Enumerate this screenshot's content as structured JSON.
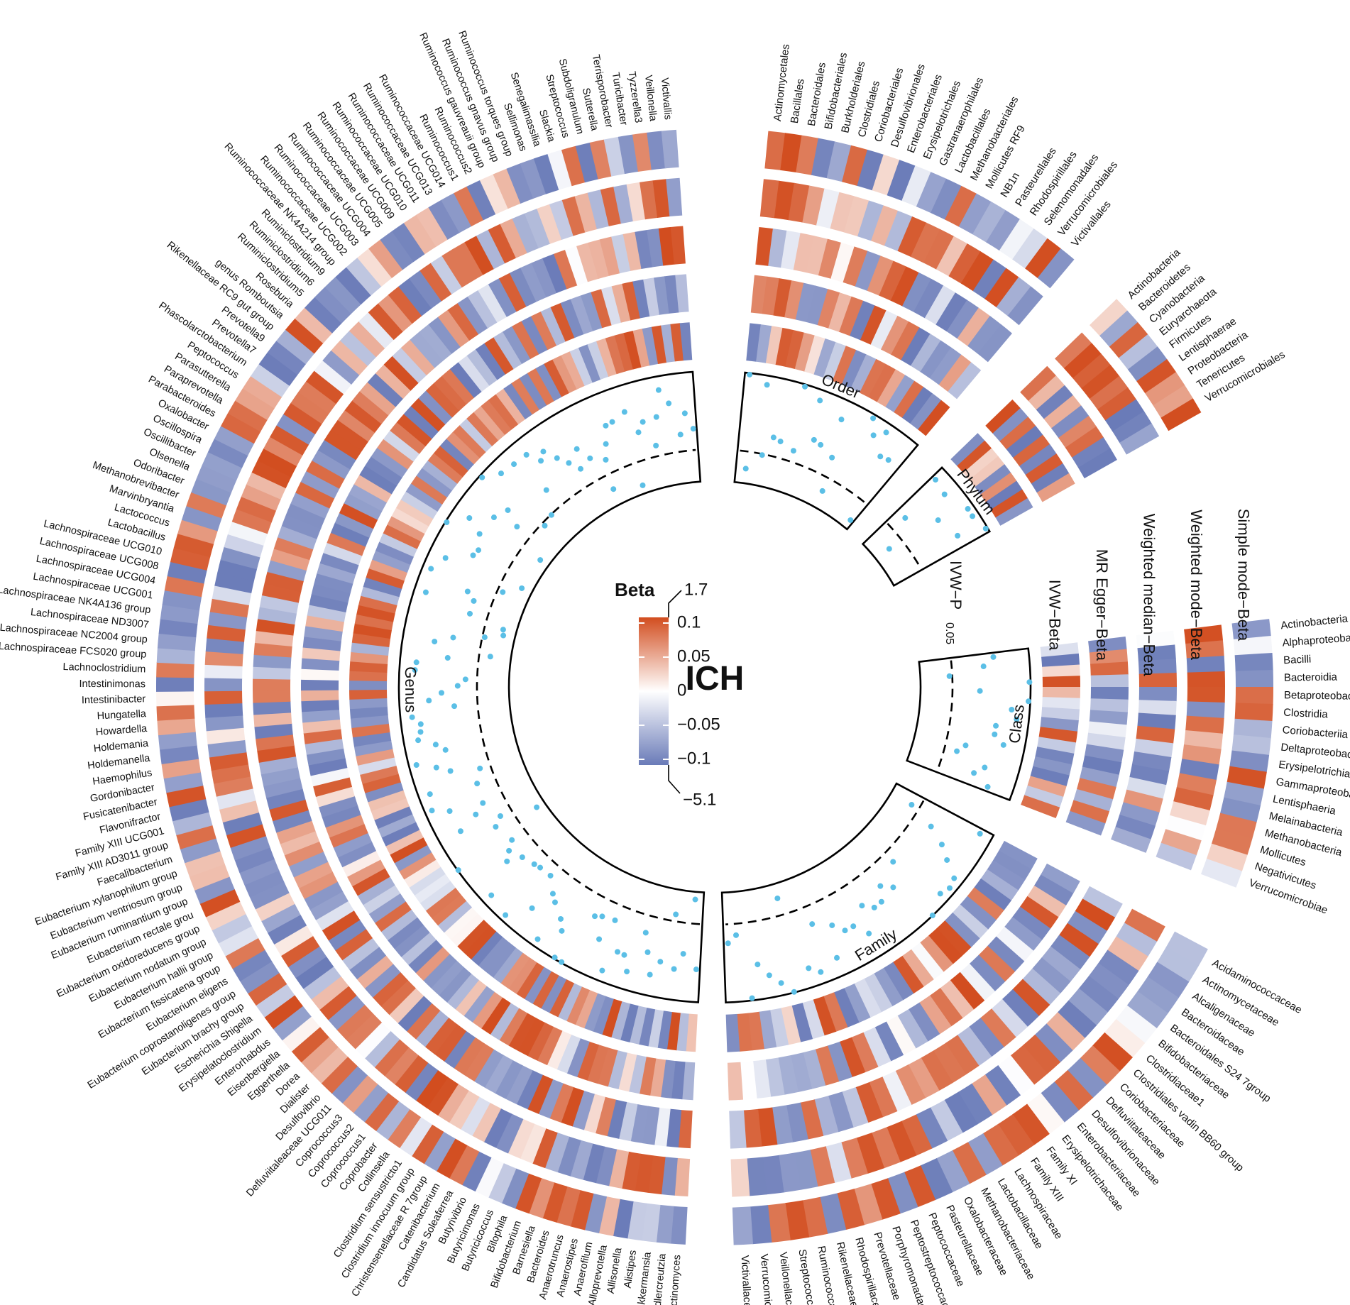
{
  "chart_data": {
    "type": "heatmap",
    "title": "ICH",
    "center_label": "ICH",
    "legend": {
      "title": "Beta",
      "tick_labels": [
        "0.1",
        "0.05",
        "0",
        "−0.05",
        "−0.1"
      ],
      "tick_values": [
        0.1,
        0.05,
        0,
        -0.05,
        -0.1
      ],
      "max_label": "1.7",
      "min_label": "−5.1",
      "color_high": "#d24d1f",
      "color_mid": "#ffffff",
      "color_low": "#6a7bb8",
      "placement": "center"
    },
    "colors": {
      "dot": "#5bbfe6",
      "outline": "#000000"
    },
    "track_labels": [
      "IVW−P",
      "IVW−Beta",
      "MR Egger−Beta",
      "Weighted median−Beta",
      "Weighted mode−Beta",
      "Simple mode−Beta"
    ],
    "pvalue_threshold_label": "0.05",
    "sectors": [
      {
        "name": "Class",
        "items": [
          "Actinobacteria",
          "Alphaproteobacteria",
          "Bacilli",
          "Bacteroidia",
          "Betaproteobacteria",
          "Clostridia",
          "Coriobacteriia",
          "Deltaproteobacteria",
          "Erysipelotrichia",
          "Gammaproteobacteria",
          "Lentisphaeria",
          "Melainabacteria",
          "Methanobacteria",
          "Mollicutes",
          "Negativicutes",
          "Verrucomicrobiae"
        ]
      },
      {
        "name": "Family",
        "items": [
          "Acidaminococcaceae",
          "Actinomycetaceae",
          "Alcaligenaceae",
          "Bacteroidaceae",
          "Bacteroidales S24 7group",
          "Bifidobacteriaceae",
          "Clostridiaceae1",
          "Clostridiales vadin BB60 group",
          "Coriobacteriaceae",
          "Defluviitaleaceae",
          "Desulfovibrionaceae",
          "Enterobacteriaceae",
          "Erysipelotrichaceae",
          "Family XI",
          "Family XIII",
          "Lachnospiraceae",
          "Lactobacillaceae",
          "Methanobacteriaceae",
          "Oxalobacteraceae",
          "Pasteurellaceae",
          "Peptococcaceae",
          "Peptostreptococcaceae",
          "Porphyromonadaceae",
          "Prevotellaceae",
          "Rhodospirillaceae",
          "Rikenellaceae",
          "Ruminococcaceae",
          "Streptococcaceae",
          "Veillonellaceae",
          "Verrucomicrobiaceae",
          "Victivallaceae"
        ]
      },
      {
        "name": "Genus",
        "items": [
          "Actinomyces",
          "Adlercreutzia",
          "Akkermansia",
          "Alistipes",
          "Allisonella",
          "Alloprevotella",
          "Anaerofilum",
          "Anaerostipes",
          "Anaerotruncus",
          "Bacteroides",
          "Barnesiella",
          "Bifidobacterium",
          "Bilophila",
          "Butyricicoccus",
          "Butyricimonas",
          "Butyrivibrio",
          "Candidatus Soleaferrea",
          "Catenibacterium",
          "Christensenellaceae R 7group",
          "Clostridium innocuum group",
          "Clostridium sensustricto1",
          "Collinsella",
          "Coprobacter",
          "Coprococcus1",
          "Coprococcus2",
          "Coprococcus3",
          "Defluviitaleaceae UCG011",
          "Desulfovibrio",
          "Dialister",
          "Dorea",
          "Eggerthella",
          "Eisenbergiella",
          "Enterorhabdus",
          "Erysipelatoclostridium",
          "Escherichia Shigella",
          "Eubacterium brachy group",
          "Eubacterium coprostanoligenes group",
          "Eubacterium eligens",
          "Eubacterium fissicatena group",
          "Eubacterium hallii group",
          "Eubacterium nodatum group",
          "Eubacterium oxidoreducens group",
          "Eubacterium rectale grou",
          "Eubacterium ruminantium group",
          "Eubacterium ventriosum group",
          "Eubacterium xylanophilum group",
          "Faecalibacterium",
          "Family XIII AD3011 group",
          "Family XIII UCG001",
          "Flavonifractor",
          "Fusicatenibacter",
          "Gordonibacter",
          "Haemophilus",
          "Holdemanella",
          "Holdemania",
          "Howardella",
          "Hungatella",
          "Intestinibacter",
          "Intestinimonas",
          "Lachnoclostridium",
          "Lachnospiraceae FCS020 group",
          "Lachnospiraceae NC2004 group",
          "Lachnospiraceae ND3007",
          "Lachnospiraceae NK4A136 group",
          "Lachnospiraceae UCG001",
          "Lachnospiraceae UCG004",
          "Lachnospiraceae UCG008",
          "Lachnospiraceae UCG010",
          "Lactobacillus",
          "Lactococcus",
          "Marvinbryantia",
          "Methanobrevibacter",
          "Odoribacter",
          "Olsenella",
          "Oscillibacter",
          "Oscillospira",
          "Oxalobacter",
          "Parabacteroides",
          "Paraprevotella",
          "Parasutterella",
          "Peptococcus",
          "Phascolarctobacterium",
          "Prevotella7",
          "Prevotella9",
          "Rikenellaceae RC9 gut group",
          "genus Romboutsia",
          "Roseburia",
          "Ruminiclostridium5",
          "Ruminiclostridium6",
          "Ruminiclostridium9",
          "Ruminococcaceae NK4A214 group",
          "Ruminococcaceae UCG002",
          "Ruminococcaceae UCG003",
          "Ruminococcaceae UCG004",
          "Ruminococcaceae UCG005",
          "Ruminococcaceae UCG009",
          "Ruminococcaceae UCG010",
          "Ruminococcaceae UCG011",
          "Ruminococcaceae UCG013",
          "Ruminococcaceae UCG014",
          "Ruminococcus1",
          "Ruminococcus2",
          "Ruminococcus gauvreauii group",
          "Ruminococcus gnavus group",
          "Ruminococcus torques group",
          "Sellimonas",
          "Senegalimassilia",
          "Slackia",
          "Streptococcus",
          "Subdoligranulum",
          "Sutterella",
          "Terrisporobacter",
          "Turicibacter",
          "Tyzzerella3",
          "Veillonella",
          "Victivallis"
        ]
      },
      {
        "name": "Order",
        "items": [
          "Actinomycetales",
          "Bacillales",
          "Bacteroidales",
          "Bifidobacteriales",
          "Burkholderiales",
          "Clostridiales",
          "Coriobacteriales",
          "Desulfovibrionales",
          "Enterobacteriales",
          "Erysipelotrichales",
          "Gastranaerophilales",
          "Lactobacillales",
          "Methanobacteriales",
          "Mollicutes RF9",
          "NB1n",
          "Pasteurellales",
          "Rhodospirillales",
          "Selenomonadales",
          "Verrucomicrobiales",
          "Victivallales"
        ]
      },
      {
        "name": "Phylum",
        "items": [
          "Actinobacteria",
          "Bacteroidetes",
          "Cyanobacteria",
          "Euryarchaeota",
          "Firmicutes",
          "Lentisphaerae",
          "Proteobacteria",
          "Tenericutes",
          "Verrucomicrobiales"
        ]
      }
    ]
  }
}
